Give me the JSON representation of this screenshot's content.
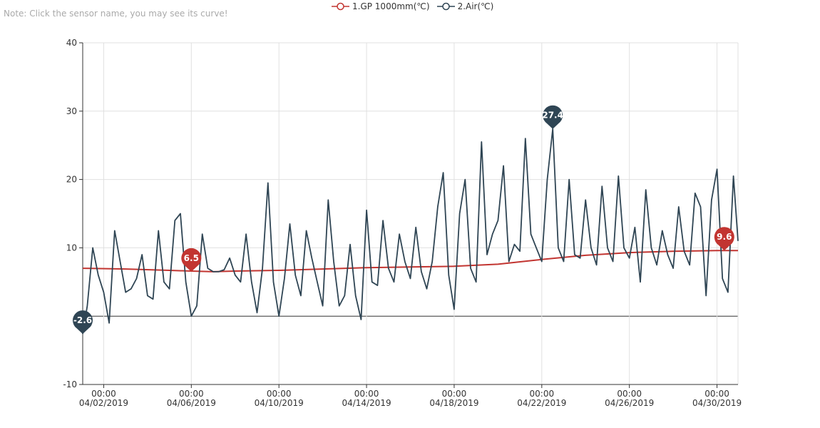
{
  "note": "Note: Click the sensor name, you may see its curve!",
  "chart_data": {
    "type": "line",
    "ylim": [
      -10,
      40
    ],
    "y_ticks": [
      40,
      30,
      20,
      10,
      0,
      -10
    ],
    "y_tick_labels": [
      "40",
      "30",
      "20",
      "10",
      "",
      "-10"
    ],
    "x_ticks": [
      {
        "x": "04/02/2019 00:00",
        "time": "00:00",
        "date": "04/02/2019"
      },
      {
        "x": "04/06/2019 00:00",
        "time": "00:00",
        "date": "04/06/2019"
      },
      {
        "x": "04/10/2019 00:00",
        "time": "00:00",
        "date": "04/10/2019"
      },
      {
        "x": "04/14/2019 00:00",
        "time": "00:00",
        "date": "04/14/2019"
      },
      {
        "x": "04/18/2019 00:00",
        "time": "00:00",
        "date": "04/18/2019"
      },
      {
        "x": "04/22/2019 00:00",
        "time": "00:00",
        "date": "04/22/2019"
      },
      {
        "x": "04/26/2019 00:00",
        "time": "00:00",
        "date": "04/26/2019"
      },
      {
        "x": "04/30/2019 00:00",
        "time": "00:00",
        "date": "04/30/2019"
      }
    ],
    "x_range": [
      "04/01/2019 01:00",
      "04/30/2019 23:00"
    ],
    "grid": true,
    "legend_position": "top-center",
    "series": [
      {
        "name": "1.GP 1000mm(℃)",
        "color": "#c23531",
        "x": [
          "04/01/2019 01:00",
          "04/03/2019 00:00",
          "04/05/2019 00:00",
          "04/06/2019 00:00",
          "04/07/2019 00:00",
          "04/08/2019 00:00",
          "04/10/2019 00:00",
          "04/12/2019 00:00",
          "04/14/2019 00:00",
          "04/16/2019 00:00",
          "04/18/2019 00:00",
          "04/20/2019 00:00",
          "04/22/2019 00:00",
          "04/24/2019 00:00",
          "04/26/2019 00:00",
          "04/28/2019 00:00",
          "04/30/2019 00:00",
          "04/30/2019 23:00"
        ],
        "values": [
          7.0,
          6.9,
          6.7,
          6.6,
          6.5,
          6.6,
          6.7,
          6.9,
          7.1,
          7.2,
          7.3,
          7.6,
          8.3,
          8.9,
          9.3,
          9.5,
          9.6,
          9.6
        ],
        "markers": [
          {
            "label": "6.5",
            "x": "04/06/2019 00:00",
            "y": 6.5
          },
          {
            "label": "9.6",
            "x": "04/30/2019 08:00",
            "y": 9.6
          }
        ]
      },
      {
        "name": "2.Air(℃)",
        "color": "#2f4554",
        "x": [
          "04/01/2019 01:00",
          "04/01/2019 06:00",
          "04/01/2019 12:00",
          "04/01/2019 18:00",
          "04/02/2019 00:00",
          "04/02/2019 06:00",
          "04/02/2019 12:00",
          "04/02/2019 18:00",
          "04/03/2019 00:00",
          "04/03/2019 06:00",
          "04/03/2019 12:00",
          "04/03/2019 18:00",
          "04/04/2019 00:00",
          "04/04/2019 06:00",
          "04/04/2019 12:00",
          "04/04/2019 18:00",
          "04/05/2019 00:00",
          "04/05/2019 06:00",
          "04/05/2019 12:00",
          "04/05/2019 18:00",
          "04/06/2019 00:00",
          "04/06/2019 06:00",
          "04/06/2019 12:00",
          "04/06/2019 18:00",
          "04/07/2019 00:00",
          "04/07/2019 06:00",
          "04/07/2019 12:00",
          "04/07/2019 18:00",
          "04/08/2019 00:00",
          "04/08/2019 06:00",
          "04/08/2019 12:00",
          "04/08/2019 18:00",
          "04/09/2019 00:00",
          "04/09/2019 06:00",
          "04/09/2019 12:00",
          "04/09/2019 18:00",
          "04/10/2019 00:00",
          "04/10/2019 06:00",
          "04/10/2019 12:00",
          "04/10/2019 18:00",
          "04/11/2019 00:00",
          "04/11/2019 06:00",
          "04/11/2019 12:00",
          "04/11/2019 18:00",
          "04/12/2019 00:00",
          "04/12/2019 06:00",
          "04/12/2019 12:00",
          "04/12/2019 18:00",
          "04/13/2019 00:00",
          "04/13/2019 06:00",
          "04/13/2019 12:00",
          "04/13/2019 18:00",
          "04/14/2019 00:00",
          "04/14/2019 06:00",
          "04/14/2019 12:00",
          "04/14/2019 18:00",
          "04/15/2019 00:00",
          "04/15/2019 06:00",
          "04/15/2019 12:00",
          "04/15/2019 18:00",
          "04/16/2019 00:00",
          "04/16/2019 06:00",
          "04/16/2019 12:00",
          "04/16/2019 18:00",
          "04/17/2019 00:00",
          "04/17/2019 06:00",
          "04/17/2019 12:00",
          "04/17/2019 18:00",
          "04/18/2019 00:00",
          "04/18/2019 06:00",
          "04/18/2019 12:00",
          "04/18/2019 18:00",
          "04/19/2019 00:00",
          "04/19/2019 06:00",
          "04/19/2019 12:00",
          "04/19/2019 18:00",
          "04/20/2019 00:00",
          "04/20/2019 06:00",
          "04/20/2019 12:00",
          "04/20/2019 18:00",
          "04/21/2019 00:00",
          "04/21/2019 06:00",
          "04/21/2019 12:00",
          "04/21/2019 18:00",
          "04/22/2019 00:00",
          "04/22/2019 06:00",
          "04/22/2019 12:00",
          "04/22/2019 18:00",
          "04/23/2019 00:00",
          "04/23/2019 06:00",
          "04/23/2019 12:00",
          "04/23/2019 18:00",
          "04/24/2019 00:00",
          "04/24/2019 06:00",
          "04/24/2019 12:00",
          "04/24/2019 18:00",
          "04/25/2019 00:00",
          "04/25/2019 06:00",
          "04/25/2019 12:00",
          "04/25/2019 18:00",
          "04/26/2019 00:00",
          "04/26/2019 06:00",
          "04/26/2019 12:00",
          "04/26/2019 18:00",
          "04/27/2019 00:00",
          "04/27/2019 06:00",
          "04/27/2019 12:00",
          "04/27/2019 18:00",
          "04/28/2019 00:00",
          "04/28/2019 06:00",
          "04/28/2019 12:00",
          "04/28/2019 18:00",
          "04/29/2019 00:00",
          "04/29/2019 06:00",
          "04/29/2019 12:00",
          "04/29/2019 18:00",
          "04/30/2019 00:00",
          "04/30/2019 06:00",
          "04/30/2019 12:00",
          "04/30/2019 18:00",
          "04/30/2019 23:00"
        ],
        "values": [
          -2.6,
          1.5,
          10.0,
          6.0,
          3.5,
          -1.0,
          12.5,
          8.0,
          3.5,
          4.0,
          5.5,
          9.0,
          3.0,
          2.5,
          12.5,
          5.0,
          4.0,
          14.0,
          15.0,
          5.0,
          0.0,
          1.5,
          12.0,
          7.0,
          6.5,
          6.5,
          6.8,
          8.5,
          6.0,
          5.0,
          12.0,
          5.0,
          0.5,
          7.0,
          19.5,
          5.0,
          0.0,
          5.5,
          13.5,
          6.0,
          3.0,
          12.5,
          8.5,
          5.0,
          1.5,
          17.0,
          8.0,
          1.5,
          3.0,
          10.5,
          3.0,
          -0.5,
          15.5,
          5.0,
          4.5,
          14.0,
          7.0,
          5.0,
          12.0,
          8.0,
          5.5,
          13.0,
          6.5,
          4.0,
          8.0,
          16.0,
          21.0,
          6.0,
          1.0,
          15.0,
          20.0,
          7.0,
          5.0,
          25.5,
          9.0,
          12.0,
          14.0,
          22.0,
          8.0,
          10.5,
          9.5,
          26.0,
          12.0,
          10.0,
          8.0,
          20.0,
          27.4,
          10.0,
          8.0,
          20.0,
          9.0,
          8.5,
          17.0,
          10.0,
          7.5,
          19.0,
          10.0,
          8.0,
          20.5,
          10.0,
          8.5,
          13.0,
          5.0,
          18.5,
          10.0,
          7.5,
          12.5,
          9.0,
          7.0,
          16.0,
          9.5,
          7.5,
          18.0,
          16.0,
          3.0,
          17.0,
          21.5,
          5.5,
          3.5,
          20.5,
          11.0
        ],
        "markers": [
          {
            "label": "-2.6",
            "x": "04/01/2019 01:00",
            "y": -2.6
          },
          {
            "label": "27.4",
            "x": "04/22/2019 12:00",
            "y": 27.4
          }
        ]
      }
    ]
  }
}
